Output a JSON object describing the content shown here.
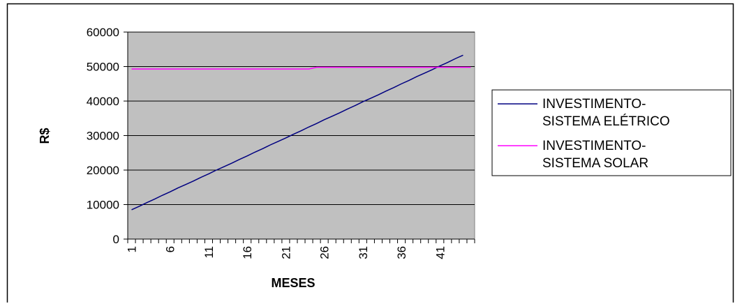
{
  "chart_data": {
    "type": "line",
    "x_label": "MESES",
    "y_label": "R$",
    "categories": [
      "1",
      null,
      null,
      null,
      null,
      "6",
      null,
      null,
      null,
      null,
      "11",
      null,
      null,
      null,
      null,
      "16",
      null,
      null,
      null,
      null,
      "21",
      null,
      null,
      null,
      null,
      "26",
      null,
      null,
      null,
      null,
      "31",
      null,
      null,
      null,
      null,
      "36",
      null,
      null,
      null,
      null,
      "41",
      null,
      null,
      null,
      null
    ],
    "series": [
      {
        "name": "INVESTIMENTO-SISTEMA ELÉTRICO",
        "color": "#000080",
        "values": [
          8500,
          9500,
          10600,
          11600,
          12700,
          13700,
          14800,
          15800,
          16800,
          17900,
          18900,
          20000,
          21000,
          22000,
          23100,
          24100,
          25200,
          26200,
          27300,
          28300,
          29300,
          30400,
          31400,
          32500,
          33500,
          34600,
          35600,
          36600,
          37700,
          38700,
          39800,
          40800,
          41800,
          42900,
          43900,
          45000,
          46000,
          47100,
          48100,
          49100,
          50200,
          51200,
          52300,
          53300,
          null
        ]
      },
      {
        "name": "INVESTIMENTO-SISTEMA SOLAR",
        "color": "#ff00ff",
        "values": [
          49300,
          49300,
          49300,
          49300,
          49300,
          49300,
          49300,
          49300,
          49300,
          49300,
          49300,
          49300,
          49300,
          49300,
          49300,
          49300,
          49300,
          49300,
          49300,
          49300,
          49300,
          49300,
          49300,
          49300,
          49800,
          49800,
          49800,
          49800,
          49800,
          49800,
          49800,
          49800,
          49800,
          49800,
          49800,
          49800,
          49800,
          49800,
          49800,
          49800,
          49800,
          49800,
          49800,
          49800,
          49800
        ]
      }
    ],
    "ylim": [
      0,
      60000
    ],
    "yticks": [
      0,
      10000,
      20000,
      30000,
      40000,
      50000,
      60000
    ],
    "grid": true,
    "plot_background": "#c0c0c0",
    "legend": "right"
  }
}
